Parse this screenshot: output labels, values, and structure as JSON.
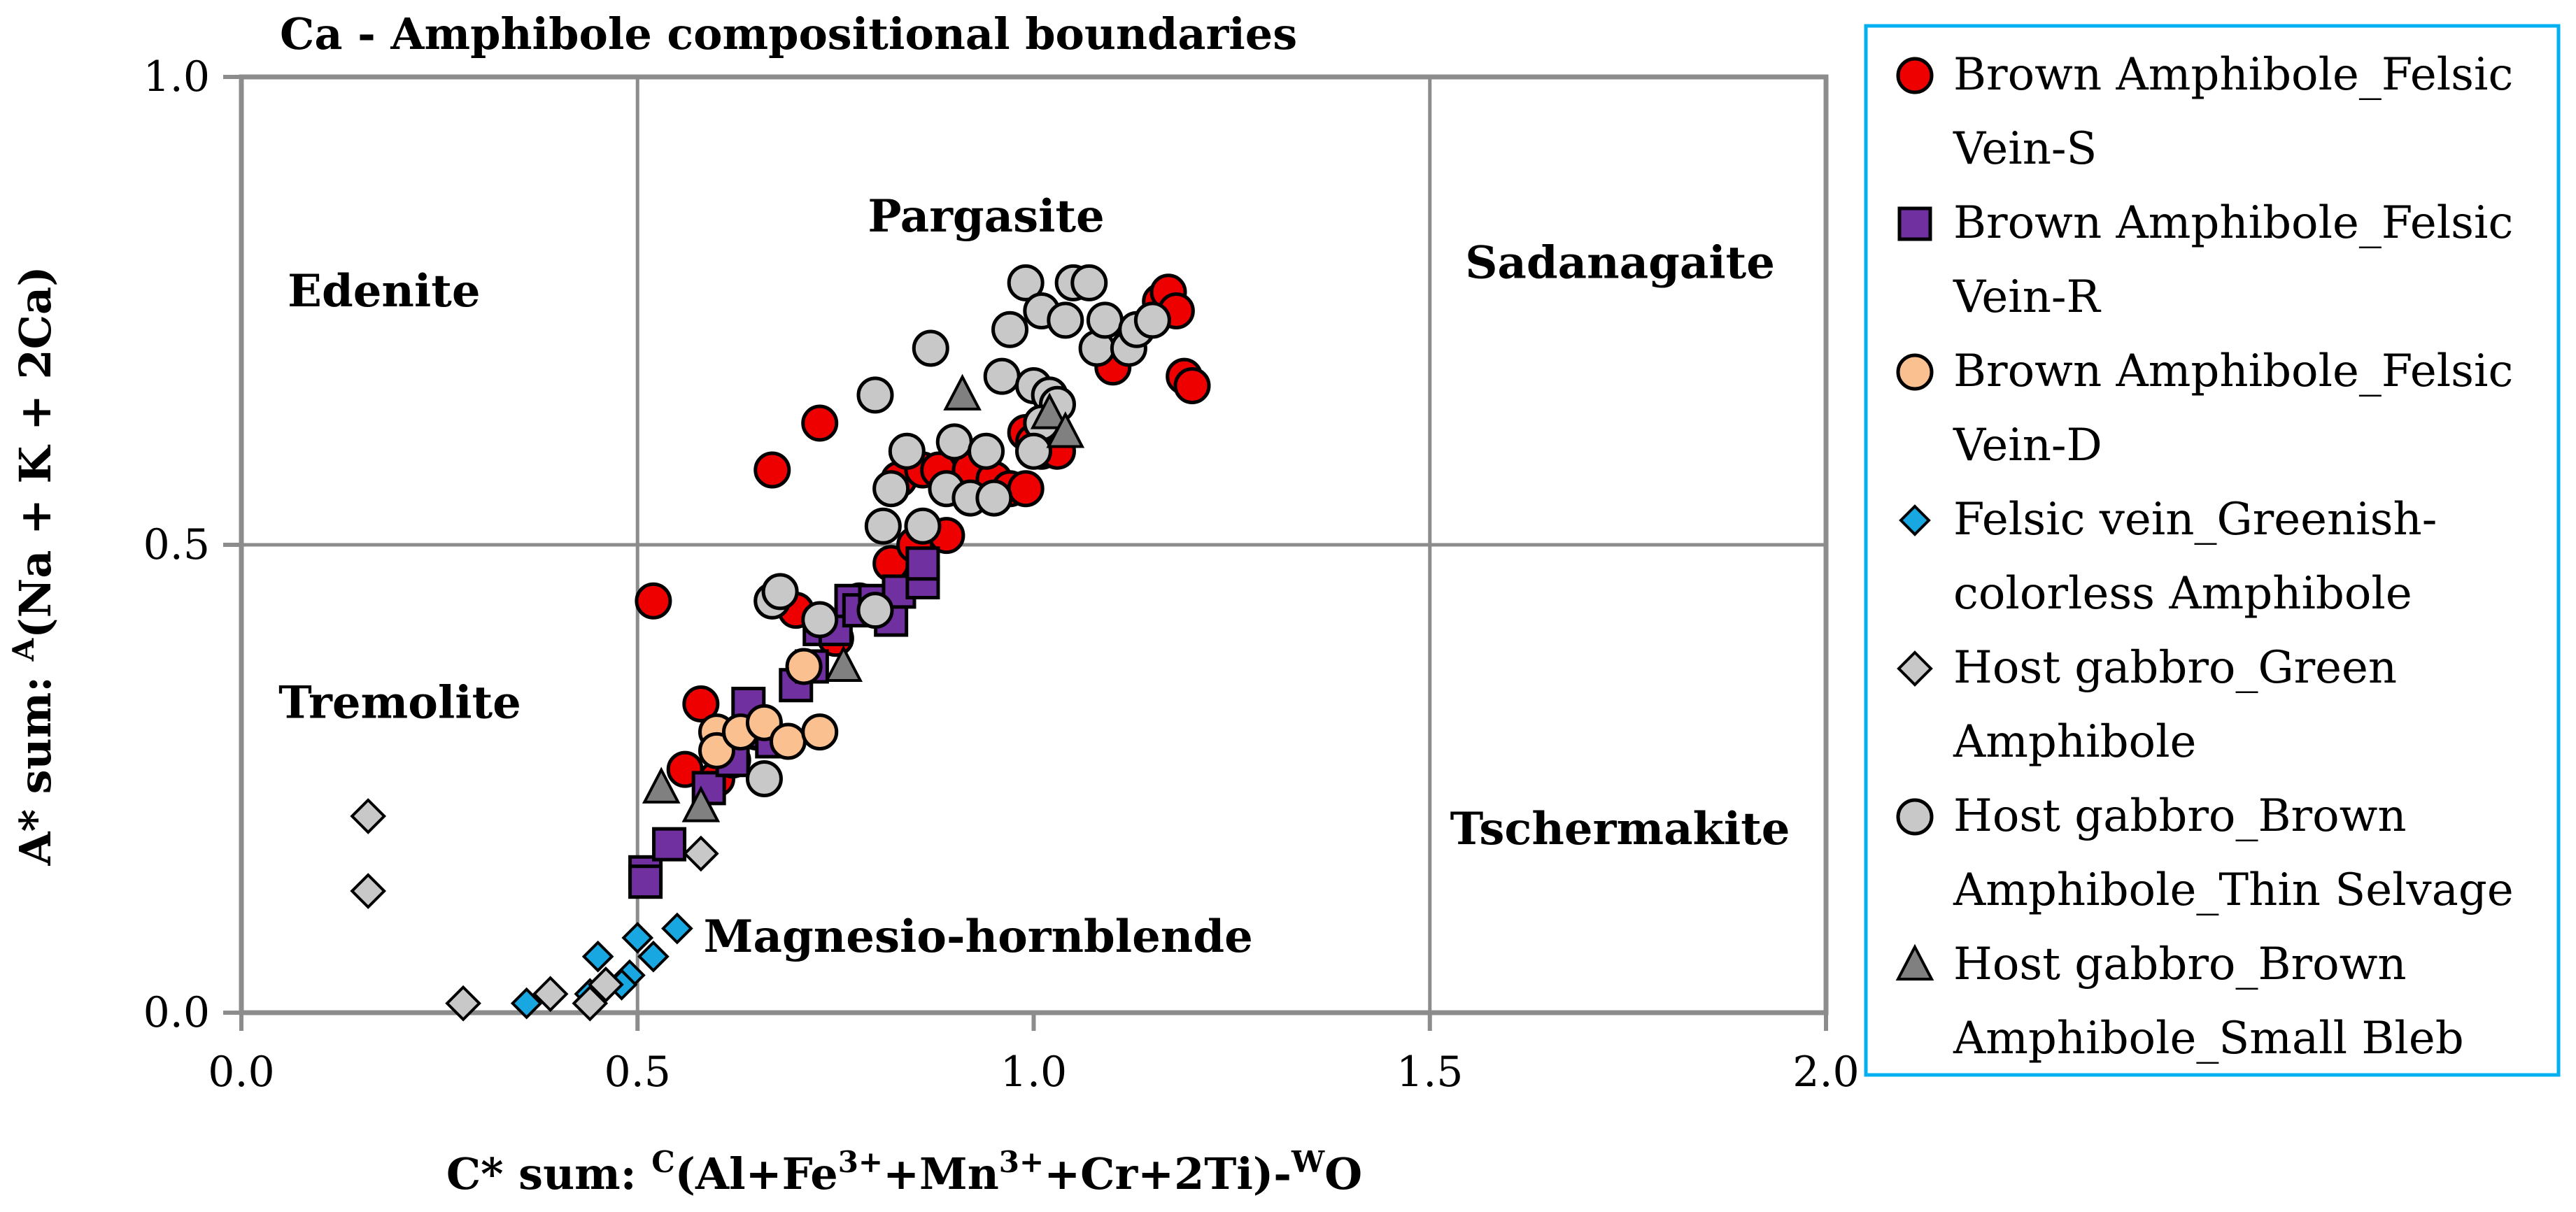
{
  "chart_data": {
    "type": "scatter",
    "title": "Ca - Amphibole compositional boundaries",
    "xlabel": {
      "base": "C* sum: ",
      "sup1": "C",
      "mid": "(Al+Fe",
      "sup2": "3+",
      "mid2": "+Mn",
      "sup3": "3+",
      "mid3": "+Cr+2Ti)-",
      "sup4": "W",
      "tail": "O"
    },
    "ylabel": {
      "base": "A* sum: ",
      "sup": "A",
      "tail": "(Na + K + 2Ca)"
    },
    "xlim": [
      0,
      2
    ],
    "ylim": [
      0,
      1
    ],
    "xticks": [
      "0.0",
      "0.5",
      "1.0",
      "1.5",
      "2.0"
    ],
    "yticks": [
      "0.0",
      "0.5",
      "1.0"
    ],
    "grid": true,
    "boundaries": {
      "x": [
        0.5,
        1.5
      ],
      "y": [
        0.5
      ]
    },
    "regions": [
      {
        "label": "Edenite",
        "x": 0.18,
        "y": 0.755
      },
      {
        "label": "Pargasite",
        "x": 0.94,
        "y": 0.835
      },
      {
        "label": "Sadanagaite",
        "x": 1.74,
        "y": 0.785
      },
      {
        "label": "Tremolite",
        "x": 0.2,
        "y": 0.315
      },
      {
        "label": "Tschermakite",
        "x": 1.74,
        "y": 0.18
      },
      {
        "label": "Magnesio-hornblende",
        "x": 0.93,
        "y": 0.065
      }
    ],
    "series": [
      {
        "name": "Brown Amphibole_Felsic Vein-S",
        "legend_lines": [
          "Brown Amphibole_Felsic",
          "Vein-S"
        ],
        "marker": "circle",
        "color": "#ee0000",
        "points": [
          [
            0.52,
            0.44
          ],
          [
            0.67,
            0.58
          ],
          [
            0.73,
            0.63
          ],
          [
            0.58,
            0.33
          ],
          [
            0.56,
            0.26
          ],
          [
            0.6,
            0.25
          ],
          [
            0.62,
            0.27
          ],
          [
            0.65,
            0.3
          ],
          [
            0.67,
            0.44
          ],
          [
            0.7,
            0.43
          ],
          [
            0.75,
            0.4
          ],
          [
            0.78,
            0.44
          ],
          [
            0.82,
            0.48
          ],
          [
            0.85,
            0.5
          ],
          [
            0.89,
            0.51
          ],
          [
            0.83,
            0.57
          ],
          [
            0.86,
            0.58
          ],
          [
            0.88,
            0.58
          ],
          [
            0.92,
            0.58
          ],
          [
            0.95,
            0.57
          ],
          [
            0.97,
            0.56
          ],
          [
            0.99,
            0.56
          ],
          [
            0.99,
            0.62
          ],
          [
            1.01,
            0.6
          ],
          [
            1.03,
            0.6
          ],
          [
            1.0,
            0.61
          ],
          [
            1.02,
            0.66
          ],
          [
            1.1,
            0.69
          ],
          [
            1.16,
            0.76
          ],
          [
            1.17,
            0.77
          ],
          [
            1.18,
            0.75
          ],
          [
            1.19,
            0.68
          ],
          [
            1.2,
            0.67
          ]
        ]
      },
      {
        "name": "Brown Amphibole_Felsic Vein-R",
        "legend_lines": [
          "Brown Amphibole_Felsic",
          "Vein-R"
        ],
        "marker": "square",
        "color": "#7030a0",
        "points": [
          [
            0.51,
            0.15
          ],
          [
            0.51,
            0.14
          ],
          [
            0.54,
            0.18
          ],
          [
            0.59,
            0.24
          ],
          [
            0.62,
            0.27
          ],
          [
            0.64,
            0.33
          ],
          [
            0.66,
            0.3
          ],
          [
            0.67,
            0.29
          ],
          [
            0.7,
            0.35
          ],
          [
            0.72,
            0.37
          ],
          [
            0.73,
            0.41
          ],
          [
            0.75,
            0.41
          ],
          [
            0.77,
            0.44
          ],
          [
            0.78,
            0.43
          ],
          [
            0.8,
            0.44
          ],
          [
            0.82,
            0.42
          ],
          [
            0.83,
            0.45
          ],
          [
            0.86,
            0.46
          ],
          [
            0.86,
            0.48
          ]
        ]
      },
      {
        "name": "Brown Amphibole_Felsic Vein-D",
        "legend_lines": [
          "Brown Amphibole_Felsic",
          "Vein-D"
        ],
        "marker": "circle",
        "color": "#fac090",
        "points": [
          [
            0.6,
            0.3
          ],
          [
            0.6,
            0.28
          ],
          [
            0.63,
            0.3
          ],
          [
            0.66,
            0.31
          ],
          [
            0.69,
            0.29
          ],
          [
            0.71,
            0.37
          ],
          [
            0.73,
            0.3
          ]
        ]
      },
      {
        "name": "Felsic vein_Greenish-colorless Amphibole",
        "legend_lines": [
          "Felsic vein_Greenish-",
          "colorless Amphibole"
        ],
        "marker": "diamond-small",
        "color": "#18a7e0",
        "points": [
          [
            0.36,
            0.01
          ],
          [
            0.45,
            0.06
          ],
          [
            0.5,
            0.08
          ],
          [
            0.49,
            0.04
          ],
          [
            0.55,
            0.09
          ],
          [
            0.48,
            0.03
          ],
          [
            0.44,
            0.02
          ],
          [
            0.52,
            0.06
          ]
        ]
      },
      {
        "name": "Host gabbro_Green Amphibole",
        "legend_lines": [
          "Host gabbro_Green",
          "Amphibole"
        ],
        "marker": "diamond",
        "color": "#c8c8c8",
        "points": [
          [
            0.16,
            0.21
          ],
          [
            0.16,
            0.13
          ],
          [
            0.28,
            0.01
          ],
          [
            0.39,
            0.02
          ],
          [
            0.44,
            0.01
          ],
          [
            0.46,
            0.03
          ],
          [
            0.58,
            0.17
          ]
        ]
      },
      {
        "name": "Host gabbro_Brown Amphibole_Thin Selvage",
        "legend_lines": [
          "Host gabbro_Brown",
          "Amphibole_Thin Selvage"
        ],
        "marker": "circle",
        "color": "#c8c8c8",
        "points": [
          [
            0.66,
            0.25
          ],
          [
            0.67,
            0.44
          ],
          [
            0.68,
            0.45
          ],
          [
            0.73,
            0.42
          ],
          [
            0.8,
            0.43
          ],
          [
            0.8,
            0.66
          ],
          [
            0.81,
            0.52
          ],
          [
            0.82,
            0.56
          ],
          [
            0.84,
            0.6
          ],
          [
            0.86,
            0.52
          ],
          [
            0.87,
            0.71
          ],
          [
            0.89,
            0.56
          ],
          [
            0.9,
            0.61
          ],
          [
            0.92,
            0.55
          ],
          [
            0.94,
            0.6
          ],
          [
            0.95,
            0.55
          ],
          [
            0.96,
            0.68
          ],
          [
            0.97,
            0.73
          ],
          [
            0.99,
            0.78
          ],
          [
            1.0,
            0.67
          ],
          [
            1.01,
            0.75
          ],
          [
            1.02,
            0.66
          ],
          [
            1.03,
            0.65
          ],
          [
            1.04,
            0.74
          ],
          [
            1.05,
            0.78
          ],
          [
            1.07,
            0.78
          ],
          [
            1.08,
            0.71
          ],
          [
            1.09,
            0.74
          ],
          [
            1.12,
            0.71
          ],
          [
            1.13,
            0.73
          ],
          [
            1.15,
            0.74
          ],
          [
            1.01,
            0.63
          ],
          [
            1.0,
            0.6
          ]
        ]
      },
      {
        "name": "Host gabbro_Brown Amphibole_Small Bleb",
        "legend_lines": [
          "Host gabbro_Brown",
          "Amphibole_Small Bleb"
        ],
        "marker": "triangle",
        "color": "#808080",
        "points": [
          [
            0.53,
            0.24
          ],
          [
            0.58,
            0.22
          ],
          [
            0.76,
            0.37
          ],
          [
            0.91,
            0.66
          ],
          [
            1.02,
            0.64
          ],
          [
            1.04,
            0.62
          ]
        ]
      }
    ]
  }
}
